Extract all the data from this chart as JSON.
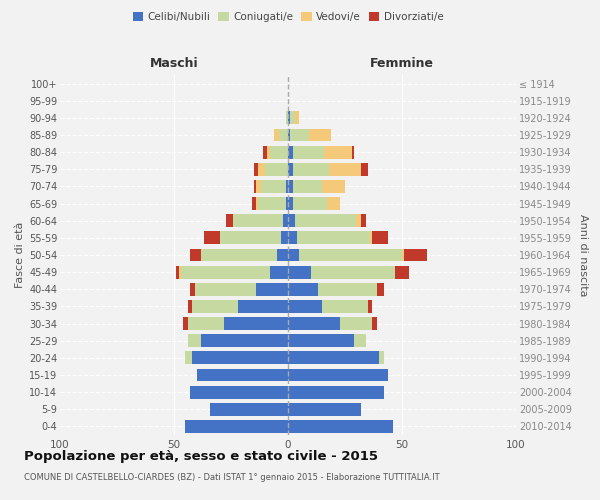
{
  "age_groups": [
    "0-4",
    "5-9",
    "10-14",
    "15-19",
    "20-24",
    "25-29",
    "30-34",
    "35-39",
    "40-44",
    "45-49",
    "50-54",
    "55-59",
    "60-64",
    "65-69",
    "70-74",
    "75-79",
    "80-84",
    "85-89",
    "90-94",
    "95-99",
    "100+"
  ],
  "birth_years": [
    "2010-2014",
    "2005-2009",
    "2000-2004",
    "1995-1999",
    "1990-1994",
    "1985-1989",
    "1980-1984",
    "1975-1979",
    "1970-1974",
    "1965-1969",
    "1960-1964",
    "1955-1959",
    "1950-1954",
    "1945-1949",
    "1940-1944",
    "1935-1939",
    "1930-1934",
    "1925-1929",
    "1920-1924",
    "1915-1919",
    "≤ 1914"
  ],
  "male": {
    "celibi": [
      45,
      34,
      43,
      40,
      42,
      38,
      28,
      22,
      14,
      8,
      5,
      3,
      2,
      1,
      1,
      0,
      0,
      0,
      0,
      0,
      0
    ],
    "coniugati": [
      0,
      0,
      0,
      0,
      3,
      6,
      16,
      20,
      27,
      39,
      33,
      27,
      22,
      12,
      11,
      10,
      8,
      4,
      1,
      0,
      0
    ],
    "vedovi": [
      0,
      0,
      0,
      0,
      0,
      0,
      0,
      0,
      0,
      1,
      0,
      0,
      0,
      1,
      2,
      3,
      1,
      2,
      0,
      0,
      0
    ],
    "divorziati": [
      0,
      0,
      0,
      0,
      0,
      0,
      2,
      2,
      2,
      1,
      5,
      7,
      3,
      2,
      1,
      2,
      2,
      0,
      0,
      0,
      0
    ]
  },
  "female": {
    "nubili": [
      46,
      32,
      42,
      44,
      40,
      29,
      23,
      15,
      13,
      10,
      5,
      4,
      3,
      2,
      2,
      2,
      2,
      1,
      1,
      0,
      0
    ],
    "coniugate": [
      0,
      0,
      0,
      0,
      2,
      5,
      14,
      20,
      26,
      37,
      45,
      32,
      27,
      15,
      13,
      16,
      14,
      8,
      2,
      0,
      0
    ],
    "vedove": [
      0,
      0,
      0,
      0,
      0,
      0,
      0,
      0,
      0,
      0,
      1,
      1,
      2,
      6,
      10,
      14,
      12,
      10,
      2,
      0,
      0
    ],
    "divorziate": [
      0,
      0,
      0,
      0,
      0,
      0,
      2,
      2,
      3,
      6,
      10,
      7,
      2,
      0,
      0,
      3,
      1,
      0,
      0,
      0,
      0
    ]
  },
  "colors": {
    "celibi_nubili": "#4472C4",
    "coniugati": "#C5D9A0",
    "vedovi": "#F5C97A",
    "divorziati": "#C0392B"
  },
  "xlim": 100,
  "title": "Popolazione per età, sesso e stato civile - 2015",
  "subtitle": "COMUNE DI CASTELBELLO-CIARDES (BZ) - Dati ISTAT 1° gennaio 2015 - Elaborazione TUTTITALIA.IT",
  "ylabel_left": "Fasce di età",
  "ylabel_right": "Anni di nascita",
  "xlabel_maschi": "Maschi",
  "xlabel_femmine": "Femmine"
}
